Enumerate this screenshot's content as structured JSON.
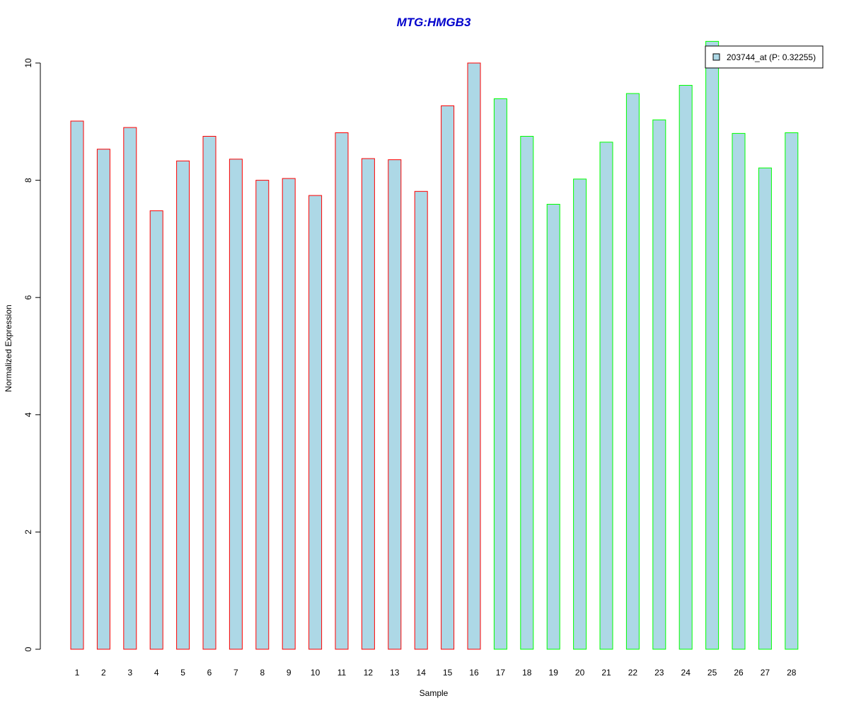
{
  "chart_data": {
    "type": "bar",
    "title": "MTG:HMGB3",
    "xlabel": "Sample",
    "ylabel": "Normalized Expression",
    "ylim": [
      0,
      10.35
    ],
    "yticks": [
      0,
      2,
      4,
      6,
      8,
      10
    ],
    "grid": false,
    "legend": {
      "position": "top-right",
      "label": "203744_at (P: 0.32255)"
    },
    "categories": [
      "1",
      "2",
      "3",
      "4",
      "5",
      "6",
      "7",
      "8",
      "9",
      "10",
      "11",
      "12",
      "13",
      "14",
      "15",
      "16",
      "17",
      "18",
      "19",
      "20",
      "21",
      "22",
      "23",
      "24",
      "25",
      "26",
      "27",
      "28"
    ],
    "series": [
      {
        "values": [
          9.01,
          8.53,
          8.9,
          7.48,
          8.33,
          8.75,
          8.36,
          8.0,
          8.03,
          7.74,
          8.81,
          8.37,
          8.35,
          7.81,
          9.27,
          10.0,
          9.39,
          8.75,
          7.59,
          8.02,
          8.65,
          9.48,
          9.03,
          9.62,
          10.37,
          8.8,
          8.21,
          8.81
        ],
        "group_border_colors": [
          "#ff0000",
          "#ff0000",
          "#ff0000",
          "#ff0000",
          "#ff0000",
          "#ff0000",
          "#ff0000",
          "#ff0000",
          "#ff0000",
          "#ff0000",
          "#ff0000",
          "#ff0000",
          "#ff0000",
          "#ff0000",
          "#ff0000",
          "#ff0000",
          "#00ff00",
          "#00ff00",
          "#00ff00",
          "#00ff00",
          "#00ff00",
          "#00ff00",
          "#00ff00",
          "#00ff00",
          "#00ff00",
          "#00ff00",
          "#00ff00",
          "#00ff00"
        ]
      }
    ],
    "colors": {
      "bar_fill": "#add8e6",
      "title": "#0000cc",
      "axis": "#000000"
    }
  }
}
